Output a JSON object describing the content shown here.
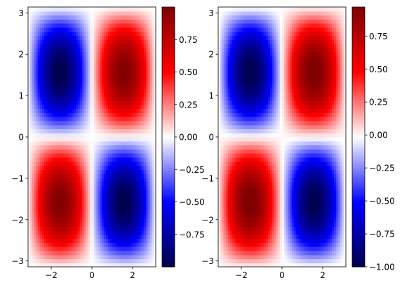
{
  "chart_data": [
    {
      "type": "heatmap",
      "function": "sin(x)*sin(y)",
      "x_range": [
        -3.14159,
        3.14159
      ],
      "y_range": [
        -3.14159,
        3.14159
      ],
      "grid_points": 64,
      "colormap": "seismic",
      "color_range": [
        -1.0,
        1.0
      ],
      "x_ticks": [
        -2,
        0,
        2
      ],
      "y_ticks": [
        -3,
        -2,
        -1,
        0,
        1,
        2,
        3
      ],
      "x_tick_labels": [
        "−2",
        "0",
        "2"
      ],
      "y_tick_labels": [
        "−3",
        "−2",
        "−1",
        "0",
        "1",
        "2",
        "3"
      ],
      "colorbar_ticks": [
        -0.75,
        -0.5,
        -0.25,
        0.0,
        0.25,
        0.5,
        0.75
      ],
      "colorbar_tick_labels": [
        "−0.75",
        "−0.50",
        "−0.25",
        "0.00",
        "0.25",
        "0.50",
        "0.75"
      ]
    },
    {
      "type": "heatmap",
      "function": "sin(x)*sin(y)",
      "x_range": [
        -3.14159,
        3.14159
      ],
      "y_range": [
        -3.14159,
        3.14159
      ],
      "grid_points": 64,
      "colormap": "seismic",
      "color_range": [
        -1.0,
        0.97
      ],
      "x_ticks": [
        -2,
        0,
        2
      ],
      "y_ticks": [
        -3,
        -2,
        -1,
        0,
        1,
        2,
        3
      ],
      "x_tick_labels": [
        "−2",
        "0",
        "2"
      ],
      "y_tick_labels": [
        "−3",
        "−2",
        "−1",
        "0",
        "1",
        "2",
        "3"
      ],
      "colorbar_ticks": [
        -1.0,
        -0.75,
        -0.5,
        -0.25,
        0.0,
        0.25,
        0.5,
        0.75
      ],
      "colorbar_tick_labels": [
        "−1.00",
        "−0.75",
        "−0.50",
        "−0.25",
        "0.00",
        "0.25",
        "0.50",
        "0.75"
      ]
    }
  ],
  "colors": {
    "seismic_min": "#00004c",
    "seismic_low": "#0000ff",
    "seismic_mid": "#ffffff",
    "seismic_high": "#ff0000",
    "seismic_max": "#800000"
  }
}
